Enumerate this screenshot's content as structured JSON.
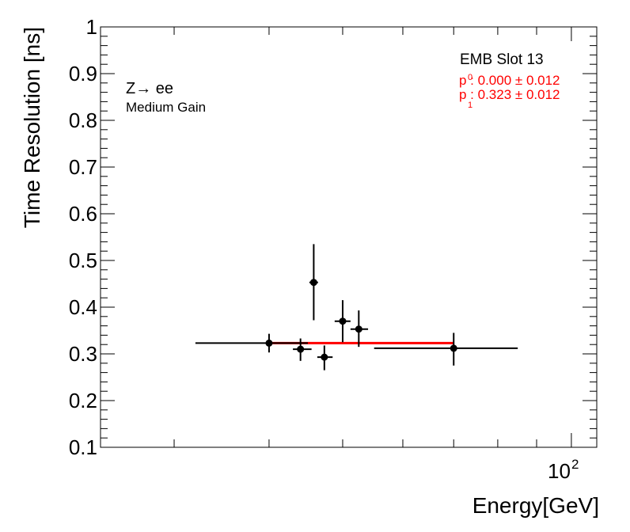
{
  "chart_data": {
    "type": "scatter",
    "xlabel": "Energy[GeV]",
    "ylabel": "Time Resolution [ns]",
    "xscale": "log",
    "xlim": [
      24,
      108
    ],
    "ylim": [
      0.1,
      1.0
    ],
    "y_ticks": [
      "0.1",
      "0.2",
      "0.3",
      "0.4",
      "0.5",
      "0.6",
      "0.7",
      "0.8",
      "0.9",
      "1"
    ],
    "x_tick_label": {
      "base": "10",
      "exp": "2"
    },
    "grid": false,
    "points": [
      {
        "x": 40.0,
        "y": 0.323,
        "xlo": 32.0,
        "xhi": 45.0,
        "ylo": 0.303,
        "yhi": 0.343
      },
      {
        "x": 44.0,
        "y": 0.31,
        "xlo": 43.0,
        "xhi": 45.5,
        "ylo": 0.285,
        "yhi": 0.333
      },
      {
        "x": 45.8,
        "y": 0.453,
        "xlo": 45.2,
        "xhi": 46.4,
        "ylo": 0.372,
        "yhi": 0.535
      },
      {
        "x": 47.3,
        "y": 0.293,
        "xlo": 46.3,
        "xhi": 48.5,
        "ylo": 0.265,
        "yhi": 0.318
      },
      {
        "x": 50.0,
        "y": 0.37,
        "xlo": 48.8,
        "xhi": 51.2,
        "ylo": 0.325,
        "yhi": 0.415
      },
      {
        "x": 52.5,
        "y": 0.353,
        "xlo": 51.2,
        "xhi": 54.0,
        "ylo": 0.315,
        "yhi": 0.393
      },
      {
        "x": 70.0,
        "y": 0.312,
        "xlo": 55.0,
        "xhi": 85.0,
        "ylo": 0.275,
        "yhi": 0.345
      }
    ],
    "fit": {
      "x_from": 40.0,
      "x_to": 70.0,
      "y": 0.323,
      "color": "#ff0000"
    },
    "marker_color": "#000000"
  },
  "annotations": {
    "process": "Z→ ee",
    "gain": "Medium Gain",
    "slot": "EMB Slot 13",
    "p0": "p : 0.000 ± 0.012",
    "p0_sub": "0",
    "p1": "p : 0.323 ± 0.012",
    "p1_sub": "1"
  }
}
